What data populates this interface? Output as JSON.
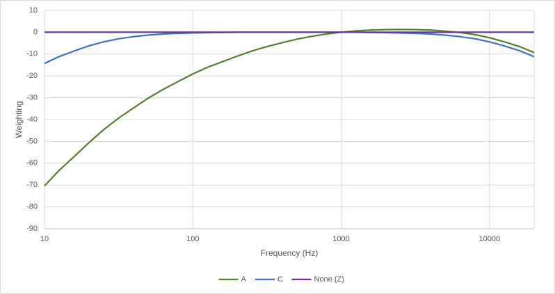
{
  "chart_data": {
    "type": "line",
    "x_label": "Frequency (Hz)",
    "y_label": "Weighting",
    "x": [
      10,
      12.5,
      16,
      20,
      25,
      31.5,
      40,
      50,
      63,
      80,
      100,
      125,
      160,
      200,
      250,
      315,
      400,
      500,
      630,
      800,
      1000,
      1250,
      1600,
      2000,
      2500,
      3150,
      4000,
      5000,
      6300,
      8000,
      10000,
      12500,
      16000,
      20000
    ],
    "series": [
      {
        "name": "A",
        "color": "#548235",
        "values": [
          -70.4,
          -63.4,
          -56.7,
          -50.5,
          -44.7,
          -39.4,
          -34.6,
          -30.2,
          -26.2,
          -22.5,
          -19.1,
          -16.1,
          -13.4,
          -10.9,
          -8.6,
          -6.6,
          -4.8,
          -3.2,
          -1.9,
          -0.8,
          0,
          0.6,
          1.0,
          1.2,
          1.3,
          1.2,
          1.0,
          0.5,
          -0.1,
          -1.1,
          -2.5,
          -4.3,
          -6.6,
          -9.3
        ]
      },
      {
        "name": "C",
        "color": "#4472c4",
        "values": [
          -14.3,
          -11.2,
          -8.5,
          -6.2,
          -4.4,
          -3.0,
          -2.0,
          -1.3,
          -0.8,
          -0.5,
          -0.3,
          -0.2,
          -0.1,
          0,
          0,
          0,
          0,
          0,
          0,
          0,
          0,
          0,
          -0.1,
          -0.2,
          -0.3,
          -0.5,
          -0.8,
          -1.3,
          -2.0,
          -3.0,
          -4.4,
          -6.2,
          -8.5,
          -11.2
        ]
      },
      {
        "name": "None (Z)",
        "color": "#7030a0",
        "values": [
          0,
          0,
          0,
          0,
          0,
          0,
          0,
          0,
          0,
          0,
          0,
          0,
          0,
          0,
          0,
          0,
          0,
          0,
          0,
          0,
          0,
          0,
          0,
          0,
          0,
          0,
          0,
          0,
          0,
          0,
          0,
          0,
          0,
          0
        ]
      }
    ],
    "xlim": [
      10,
      20000
    ],
    "xticks": [
      10,
      100,
      1000,
      10000
    ],
    "x_scale": "log",
    "ylim": [
      -90,
      10
    ],
    "yticks": [
      -90,
      -80,
      -70,
      -60,
      -50,
      -40,
      -30,
      -20,
      -10,
      0,
      10
    ],
    "grid": true,
    "legend": "bottom"
  }
}
